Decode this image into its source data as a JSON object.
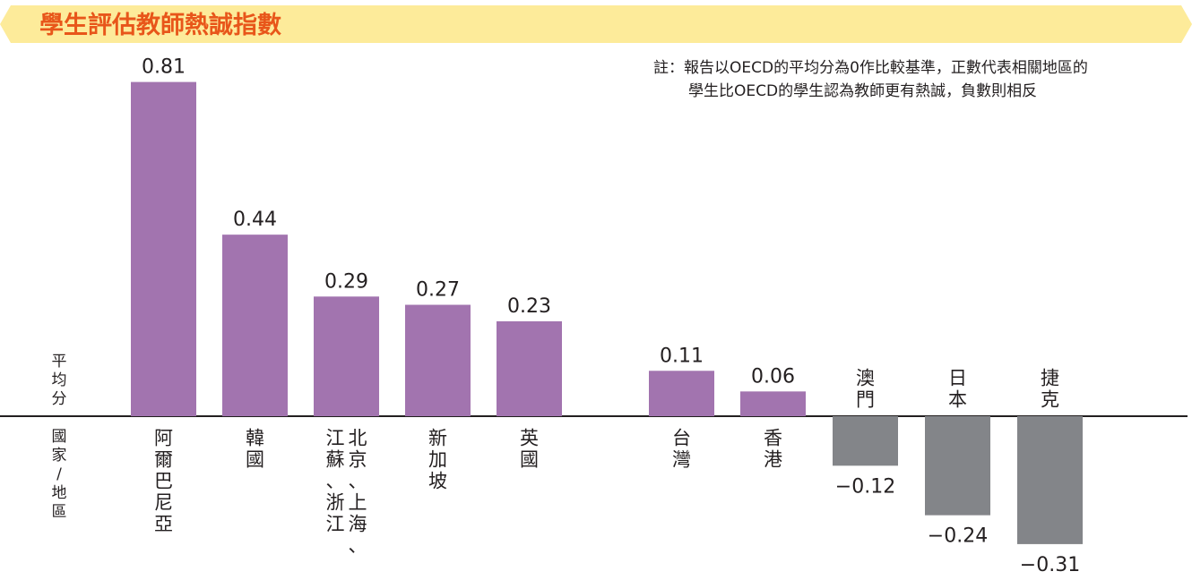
{
  "chart_data": {
    "type": "bar",
    "title": "學生評估教師熱誠指數",
    "note": [
      "註：報告以OECD的平均分為0作比較基準，正數代表相關地區的",
      "學生比OECD的學生認為教師更有熱誠，負數則相反"
    ],
    "ylabel": "平均分",
    "xlabel": "國家/地區",
    "categories": [
      {
        "label": [
          "阿爾巴尼亞"
        ]
      },
      {
        "label": [
          "韓國"
        ]
      },
      {
        "label": [
          "北京、上海、",
          "江蘇、浙江"
        ]
      },
      {
        "label": [
          "新加坡"
        ]
      },
      {
        "label": [
          "英國"
        ]
      },
      {
        "label": [
          "台灣"
        ]
      },
      {
        "label": [
          "香港"
        ]
      },
      {
        "label": [
          "澳門"
        ]
      },
      {
        "label": [
          "日本"
        ]
      },
      {
        "label": [
          "捷克"
        ]
      }
    ],
    "values": [
      0.81,
      0.44,
      0.29,
      0.27,
      0.23,
      0.11,
      0.06,
      -0.12,
      -0.24,
      -0.31
    ],
    "value_labels": [
      "0.81",
      "0.44",
      "0.29",
      "0.27",
      "0.23",
      "0.11",
      "0.06",
      "−0.12",
      "−0.24",
      "−0.31"
    ],
    "colors": {
      "positive": "#a274af",
      "negative": "#838589",
      "title_band": "#fdeb9a",
      "title_text": "#e8561a"
    },
    "ylim": [
      -0.35,
      0.85
    ],
    "grid": false
  }
}
